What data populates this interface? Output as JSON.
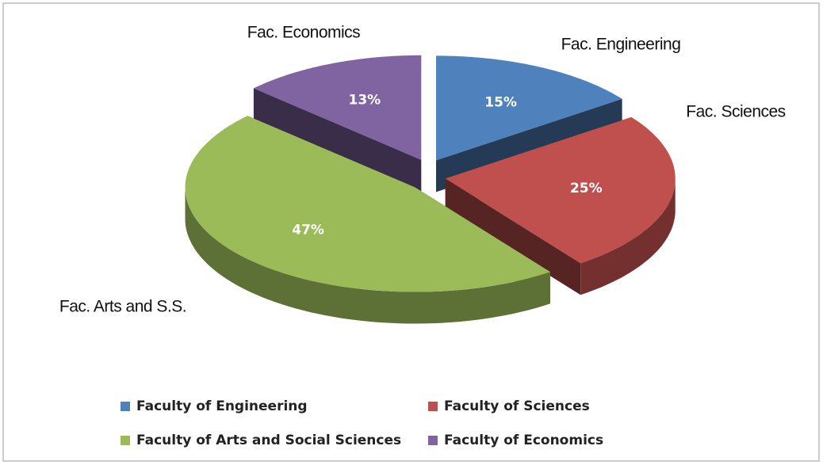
{
  "chart_data": {
    "type": "pie",
    "categories": [
      "Faculty of Engineering",
      "Faculty of Sciences",
      "Faculty of Arts and Social Sciences",
      "Faculty of Economics"
    ],
    "labels": [
      "Fac. Engineering",
      "Fac. Sciences",
      "Fac. Arts and S.S.",
      "Fac. Economics"
    ],
    "values": [
      15,
      25,
      47,
      13
    ],
    "value_labels": [
      "15%",
      "25%",
      "47%",
      "13%"
    ],
    "colors": [
      "#4f81bd",
      "#c0504d",
      "#9bbb59",
      "#8064a2"
    ],
    "legend": "bottom"
  }
}
